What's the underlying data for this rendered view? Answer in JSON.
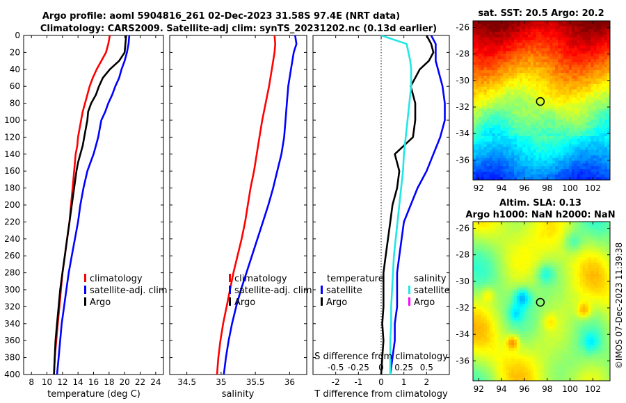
{
  "title": {
    "line1": "Argo profile: aoml 5904816_261 02-Dec-2023 31.58S 97.4E (NRT data)",
    "line2": "Climatology: CARS2009. Satellite-adj clim: synTS_20231202.nc (0.13d earlier)"
  },
  "colors": {
    "clim": "#ff0000",
    "sat": "#0000ff",
    "argo": "#000000",
    "sat_s": "#22e6e6",
    "argo_s": "#ff00ff"
  },
  "depth_axis": {
    "ylim": [
      0,
      400
    ],
    "ticks": [
      0,
      20,
      40,
      60,
      80,
      100,
      120,
      140,
      160,
      180,
      200,
      220,
      240,
      260,
      280,
      300,
      320,
      340,
      360,
      380,
      400
    ]
  },
  "chart_data": [
    {
      "type": "line",
      "name": "temperature",
      "xlabel": "temperature (deg C)",
      "xlim": [
        7,
        25
      ],
      "xticks": [
        8,
        10,
        12,
        14,
        16,
        18,
        20,
        22,
        24
      ],
      "depth": [
        0,
        10,
        20,
        30,
        40,
        50,
        60,
        70,
        80,
        90,
        100,
        110,
        120,
        130,
        140,
        150,
        160,
        180,
        200,
        220,
        240,
        260,
        280,
        300,
        320,
        340,
        360,
        380,
        400
      ],
      "series": [
        {
          "name": "climatology",
          "color_key": "clim",
          "values": [
            18.1,
            17.9,
            17.6,
            17.0,
            16.4,
            15.9,
            15.5,
            15.2,
            14.9,
            14.6,
            14.4,
            14.2,
            14.0,
            13.9,
            13.7,
            13.6,
            13.5,
            13.3,
            13.1,
            12.9,
            12.6,
            12.3,
            12.0,
            11.8,
            11.6,
            11.4,
            11.2,
            11.0,
            10.9
          ]
        },
        {
          "name": "satellite-adj. clim",
          "color_key": "sat",
          "values": [
            20.6,
            20.5,
            20.3,
            20.0,
            19.6,
            19.3,
            18.8,
            18.4,
            17.9,
            17.5,
            17.0,
            16.8,
            16.6,
            16.3,
            16.0,
            15.6,
            15.2,
            14.7,
            14.3,
            14.0,
            13.6,
            13.2,
            12.8,
            12.5,
            12.2,
            11.9,
            11.7,
            11.5,
            11.3
          ]
        },
        {
          "name": "Argo",
          "color_key": "argo",
          "values": [
            20.2,
            20.1,
            20.0,
            19.3,
            18.1,
            17.2,
            16.7,
            16.3,
            15.7,
            15.3,
            15.2,
            15.0,
            14.8,
            14.6,
            14.3,
            14.0,
            13.8,
            13.5,
            13.2,
            12.9,
            12.6,
            12.3,
            12.0,
            11.7,
            11.5,
            11.3,
            11.1,
            11.0,
            10.9
          ]
        }
      ],
      "legend": [
        "climatology",
        "satellite-adj. clim",
        "Argo"
      ]
    },
    {
      "type": "line",
      "name": "salinity",
      "xlabel": "salinity",
      "xlim": [
        34.25,
        36.25
      ],
      "xticks": [
        34.5,
        35,
        35.5,
        36
      ],
      "xticklabels": [
        "34.5",
        "35",
        "35.5",
        "36"
      ],
      "depth": [
        0,
        10,
        20,
        40,
        60,
        80,
        100,
        120,
        140,
        160,
        180,
        200,
        220,
        240,
        260,
        280,
        300,
        320,
        340,
        360,
        380,
        400
      ],
      "series": [
        {
          "name": "climatology",
          "color_key": "clim",
          "values": [
            35.78,
            35.79,
            35.78,
            35.74,
            35.7,
            35.65,
            35.6,
            35.56,
            35.52,
            35.48,
            35.43,
            35.39,
            35.35,
            35.3,
            35.24,
            35.18,
            35.13,
            35.08,
            35.03,
            34.99,
            34.96,
            34.94
          ]
        },
        {
          "name": "satellite-adj. clim",
          "color_key": "sat",
          "values": [
            36.08,
            36.1,
            36.06,
            36.02,
            35.98,
            35.96,
            35.94,
            35.92,
            35.88,
            35.82,
            35.76,
            35.69,
            35.61,
            35.53,
            35.45,
            35.37,
            35.29,
            35.22,
            35.16,
            35.11,
            35.07,
            35.04
          ]
        }
      ],
      "legend": [
        "climatology",
        "satellite-adj. clim",
        "Argo"
      ]
    },
    {
      "type": "line",
      "name": "difference",
      "xlabel": "T difference from climatology",
      "xlabel_top": "S difference from climatology",
      "xlim": [
        -3,
        3
      ],
      "xticks": [
        -2,
        -1,
        0,
        1,
        2
      ],
      "top_ticks": [
        -0.5,
        -0.25,
        0,
        0.25,
        0.5
      ],
      "top_ticklabels": [
        "-0.5",
        "-0.25",
        "0",
        "0.25",
        "0.5"
      ],
      "s_scale": 4,
      "depth": [
        0,
        10,
        20,
        30,
        40,
        60,
        80,
        100,
        120,
        140,
        160,
        180,
        200,
        220,
        240,
        260,
        280,
        300,
        320,
        340,
        360,
        380,
        400
      ],
      "series": [
        {
          "name": "T satellite",
          "color_key": "sat",
          "values": [
            2.2,
            2.4,
            2.4,
            2.4,
            2.5,
            2.7,
            2.8,
            2.8,
            2.6,
            2.3,
            2.0,
            1.6,
            1.3,
            1.0,
            0.9,
            0.8,
            0.7,
            0.7,
            0.7,
            0.6,
            0.6,
            0.5,
            0.4
          ]
        },
        {
          "name": "T Argo",
          "color_key": "argo",
          "values": [
            2.0,
            2.2,
            2.3,
            2.1,
            1.7,
            1.3,
            1.5,
            1.5,
            1.4,
            0.6,
            0.8,
            0.7,
            0.5,
            0.4,
            0.3,
            0.2,
            0.1,
            0.1,
            0.1,
            0.05,
            0.1,
            0.05,
            0.0
          ]
        },
        {
          "name": "S satellite",
          "color_key": "sat_s",
          "values": [
            0.0,
            0.28,
            0.3,
            0.32,
            0.33,
            0.33,
            0.31,
            0.29,
            0.27,
            0.25,
            0.24,
            0.22,
            0.2,
            0.18,
            0.16,
            0.14,
            0.13,
            0.12,
            0.11,
            0.11,
            0.1,
            0.1,
            0.1
          ]
        }
      ],
      "legend_temperature": [
        "temperature",
        "satellite",
        "Argo"
      ],
      "legend_salinity": [
        "salinity",
        "satellite",
        "Argo"
      ]
    },
    {
      "type": "heatmap",
      "name": "sst_map",
      "title": "sat. SST: 20.5 Argo: 20.2",
      "xlim": [
        91.5,
        103.5
      ],
      "ylim": [
        -37.5,
        -25.5
      ],
      "xticks": [
        92,
        94,
        96,
        98,
        100,
        102
      ],
      "yticks": [
        -26,
        -28,
        -30,
        -32,
        -34,
        -36
      ],
      "marker": {
        "lon": 97.4,
        "lat": -31.58
      }
    },
    {
      "type": "heatmap",
      "name": "sla_map",
      "title": "Altim. SLA: 0.13",
      "title2": "Argo h1000: NaN h2000: NaN",
      "xlim": [
        91.5,
        103.5
      ],
      "ylim": [
        -37.5,
        -25.5
      ],
      "xticks": [
        92,
        94,
        96,
        98,
        100,
        102
      ],
      "yticks": [
        -26,
        -28,
        -30,
        -32,
        -34,
        -36
      ],
      "marker": {
        "lon": 97.4,
        "lat": -31.58
      }
    }
  ],
  "watermark": "©IMOS 07-Dec-2023 11:39:38"
}
